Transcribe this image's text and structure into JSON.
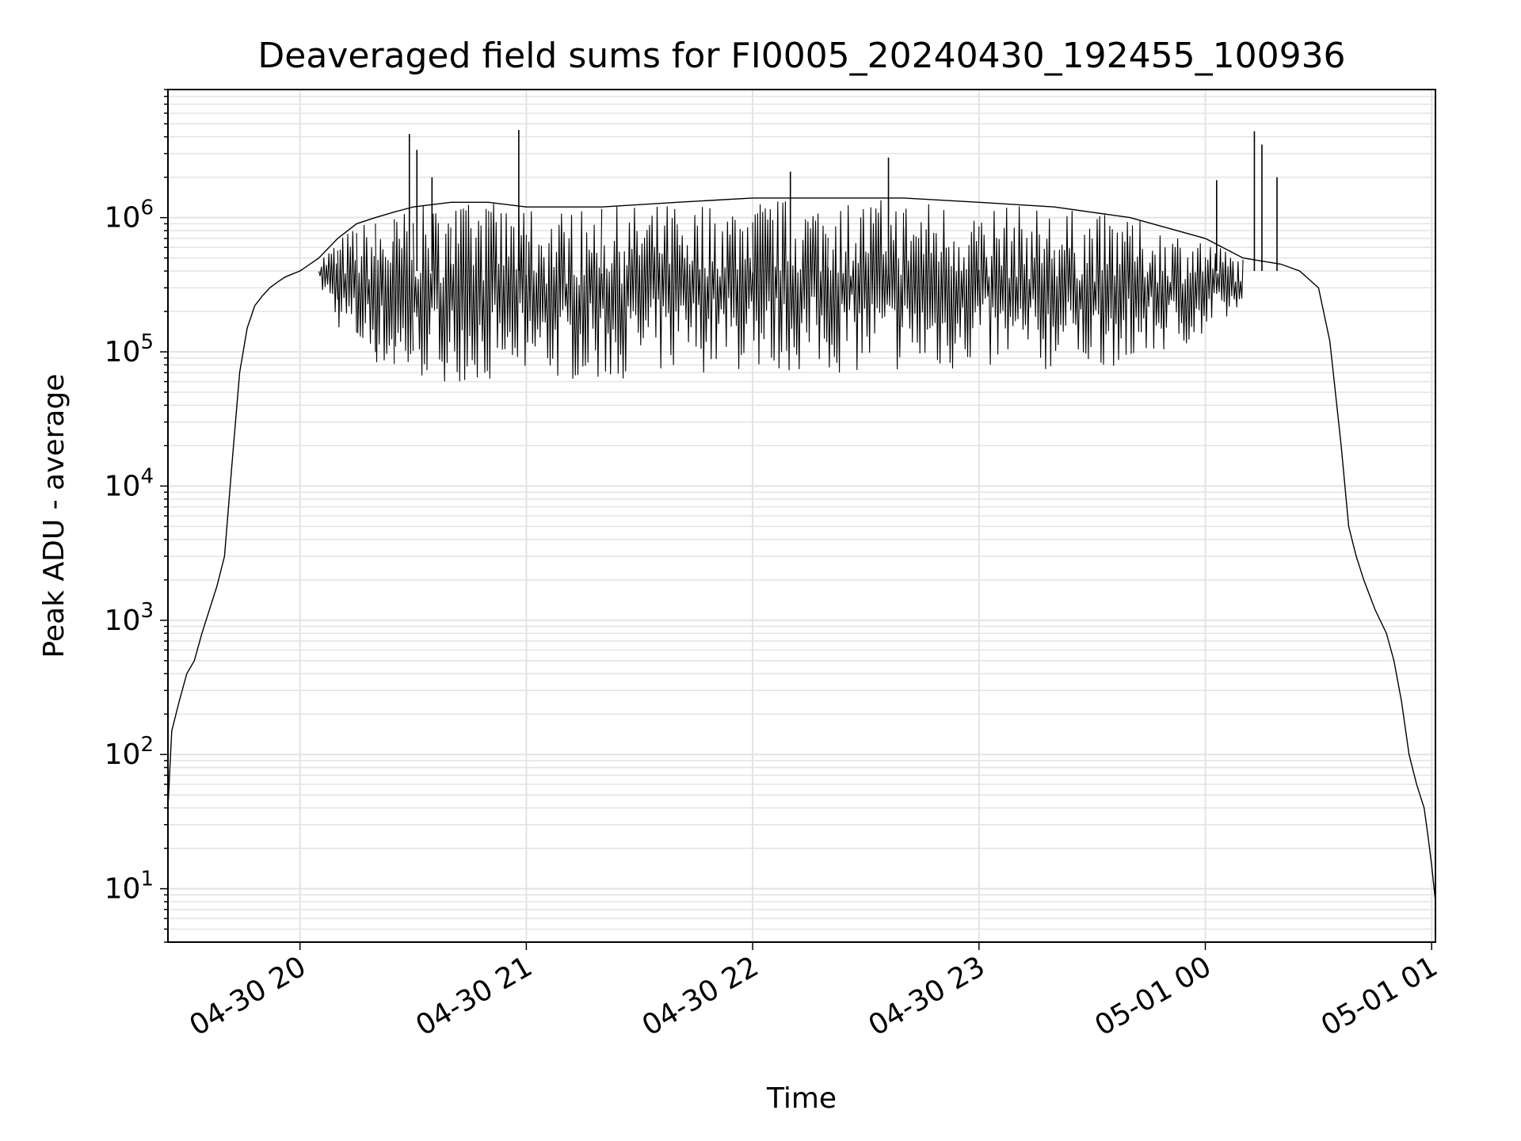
{
  "chart_data": {
    "type": "line",
    "title": "Deaveraged field sums for FI0005_20240430_192455_100936",
    "xlabel": "Time",
    "ylabel": "Peak ADU - average",
    "y_scale": "log",
    "ylim": [
      4,
      9000000
    ],
    "xlim": [
      "2024-04-30 19:25",
      "2024-05-01 01:01"
    ],
    "grid": true,
    "legend": false,
    "line_color": "#000000",
    "grid_color": "#e3e3e3",
    "x_ticks": [
      {
        "time": "2024-04-30 20:00",
        "label": "04-30 20"
      },
      {
        "time": "2024-04-30 21:00",
        "label": "04-30 21"
      },
      {
        "time": "2024-04-30 22:00",
        "label": "04-30 22"
      },
      {
        "time": "2024-04-30 23:00",
        "label": "04-30 23"
      },
      {
        "time": "2024-05-01 00:00",
        "label": "05-01 00"
      },
      {
        "time": "2024-05-01 01:00",
        "label": "05-01 01"
      }
    ],
    "y_ticks": [
      {
        "value": 10,
        "base": "10",
        "exp": "1"
      },
      {
        "value": 100,
        "base": "10",
        "exp": "2"
      },
      {
        "value": 1000,
        "base": "10",
        "exp": "3"
      },
      {
        "value": 10000,
        "base": "10",
        "exp": "4"
      },
      {
        "value": 100000,
        "base": "10",
        "exp": "5"
      },
      {
        "value": 1000000,
        "base": "10",
        "exp": "6"
      }
    ],
    "series": [
      {
        "x": [
          "2024-04-30 19:25",
          "2024-04-30 19:26",
          "2024-04-30 19:28",
          "2024-04-30 19:30",
          "2024-04-30 19:32",
          "2024-04-30 19:34",
          "2024-04-30 19:36",
          "2024-04-30 19:38",
          "2024-04-30 19:40",
          "2024-04-30 19:42",
          "2024-04-30 19:44",
          "2024-04-30 19:46",
          "2024-04-30 19:48",
          "2024-04-30 19:50",
          "2024-04-30 19:52",
          "2024-04-30 19:54",
          "2024-04-30 19:56",
          "2024-04-30 19:58",
          "2024-04-30 20:00",
          "2024-04-30 20:05",
          "2024-04-30 20:10",
          "2024-04-30 20:15",
          "2024-04-30 20:20",
          "2024-04-30 20:25",
          "2024-04-30 20:30",
          "2024-04-30 20:40",
          "2024-04-30 20:50",
          "2024-04-30 21:00",
          "2024-04-30 21:20",
          "2024-04-30 21:40",
          "2024-04-30 22:00",
          "2024-04-30 22:20",
          "2024-04-30 22:40",
          "2024-04-30 23:00",
          "2024-04-30 23:20",
          "2024-04-30 23:40",
          "2024-05-01 00:00",
          "2024-05-01 00:10",
          "2024-05-01 00:20",
          "2024-05-01 00:25",
          "2024-05-01 00:30",
          "2024-05-01 00:33",
          "2024-05-01 00:36",
          "2024-05-01 00:38",
          "2024-05-01 00:40",
          "2024-05-01 00:42",
          "2024-05-01 00:45",
          "2024-05-01 00:48",
          "2024-05-01 00:50",
          "2024-05-01 00:52",
          "2024-05-01 00:54",
          "2024-05-01 00:56",
          "2024-05-01 00:58",
          "2024-05-01 00:59",
          "2024-05-01 01:00",
          "2024-05-01 01:01"
        ],
        "y": [
          40,
          150,
          250,
          400,
          500,
          800,
          1200,
          1800,
          3000,
          15000,
          70000,
          150000,
          220000,
          260000,
          300000,
          330000,
          360000,
          380000,
          400000,
          500000,
          700000,
          900000,
          1000000,
          1100000,
          1200000,
          1300000,
          1300000,
          1200000,
          1200000,
          1300000,
          1400000,
          1400000,
          1400000,
          1300000,
          1200000,
          1000000,
          700000,
          500000,
          450000,
          400000,
          300000,
          120000,
          20000,
          5000,
          3000,
          2000,
          1200,
          800,
          500,
          250,
          100,
          60,
          40,
          25,
          15,
          8
        ],
        "envelope_low": [
          null,
          null,
          null,
          null,
          null,
          null,
          null,
          null,
          null,
          null,
          null,
          null,
          null,
          null,
          null,
          null,
          null,
          null,
          null,
          300000,
          150000,
          100000,
          80000,
          60000,
          60000,
          60000,
          60000,
          60000,
          60000,
          70000,
          70000,
          70000,
          70000,
          70000,
          70000,
          80000,
          120000,
          200000,
          null,
          null,
          null,
          null,
          null,
          null,
          null,
          null,
          null,
          null,
          null,
          null,
          null,
          null,
          null,
          null,
          null,
          null
        ],
        "spikes": [
          {
            "time": "2024-04-30 20:29",
            "value": 4200000
          },
          {
            "time": "2024-04-30 20:31",
            "value": 3200000
          },
          {
            "time": "2024-04-30 20:35",
            "value": 2000000
          },
          {
            "time": "2024-04-30 20:58",
            "value": 4500000
          },
          {
            "time": "2024-04-30 22:10",
            "value": 2200000
          },
          {
            "time": "2024-04-30 22:36",
            "value": 2800000
          },
          {
            "time": "2024-05-01 00:03",
            "value": 1900000
          },
          {
            "time": "2024-05-01 00:13",
            "value": 4400000
          },
          {
            "time": "2024-05-01 00:15",
            "value": 3500000
          },
          {
            "time": "2024-05-01 00:19",
            "value": 2000000
          }
        ]
      }
    ]
  }
}
